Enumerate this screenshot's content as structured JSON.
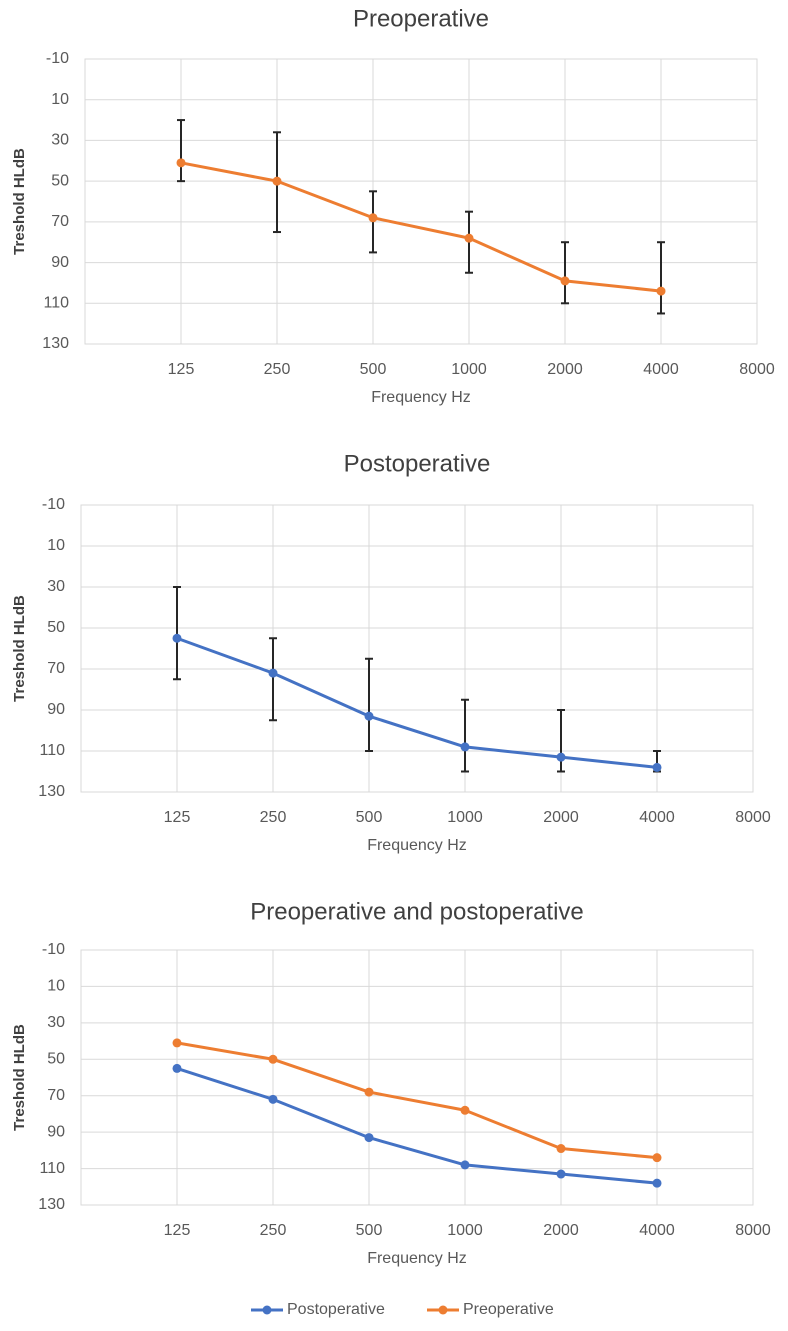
{
  "chart_data": [
    {
      "type": "line",
      "title": "Preoperative",
      "x_label": "Frequency Hz",
      "y_label": "Treshold HLdB",
      "categories": [
        "125",
        "250",
        "500",
        "1000",
        "2000",
        "4000",
        "8000"
      ],
      "values": [
        41,
        50,
        68,
        78,
        99,
        104,
        null
      ],
      "error_low": [
        20,
        26,
        55,
        65,
        80,
        80,
        null
      ],
      "error_high": [
        50,
        75,
        85,
        95,
        110,
        115,
        null
      ],
      "color": "#ed7d31",
      "error_color": "#262626",
      "ylim": [
        -10,
        130
      ],
      "y_reversed": true,
      "yticks": [
        -10,
        10,
        30,
        50,
        70,
        90,
        110,
        130
      ],
      "grid": true
    },
    {
      "type": "line",
      "title": "Postoperative",
      "x_label": "Frequency Hz",
      "y_label": "Treshold HLdB",
      "categories": [
        "125",
        "250",
        "500",
        "1000",
        "2000",
        "4000",
        "8000"
      ],
      "values": [
        55,
        72,
        93,
        108,
        113,
        118,
        null
      ],
      "error_low": [
        30,
        55,
        65,
        85,
        90,
        110,
        null
      ],
      "error_high": [
        75,
        95,
        110,
        120,
        120,
        120,
        null
      ],
      "color": "#4472c4",
      "error_color": "#262626",
      "ylim": [
        -10,
        130
      ],
      "y_reversed": true,
      "yticks": [
        -10,
        10,
        30,
        50,
        70,
        90,
        110,
        130
      ],
      "grid": true
    },
    {
      "type": "line",
      "title": "Preoperative and postoperative",
      "x_label": "Frequency Hz",
      "y_label": "Treshold HLdB",
      "categories": [
        "125",
        "250",
        "500",
        "1000",
        "2000",
        "4000",
        "8000"
      ],
      "series": [
        {
          "name": "Postoperative",
          "color": "#4472c4",
          "values": [
            55,
            72,
            93,
            108,
            113,
            118,
            null
          ]
        },
        {
          "name": "Preoperative",
          "color": "#ed7d31",
          "values": [
            41,
            50,
            68,
            78,
            99,
            104,
            null
          ]
        }
      ],
      "ylim": [
        -10,
        130
      ],
      "y_reversed": true,
      "yticks": [
        -10,
        10,
        30,
        50,
        70,
        90,
        110,
        130
      ],
      "grid": true,
      "legend": "bottom"
    }
  ]
}
